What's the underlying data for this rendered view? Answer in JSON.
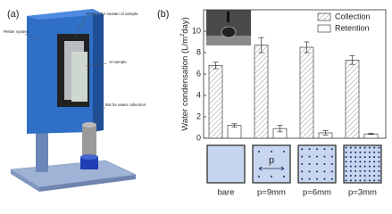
{
  "panel_labels": [
    "(a)",
    "(b)"
  ],
  "diagram": {
    "labels": [
      "Peltier system",
      "Al block for sustain of sample",
      "Al sample",
      "Bal for water collection"
    ]
  },
  "chart_data": {
    "type": "bar",
    "y_label": [
      "Water condensation (L/m",
      "2",
      "day)"
    ],
    "categories": [
      "bare",
      "p=9mm",
      "p=6mm",
      "p=3mm"
    ],
    "series": [
      {
        "name": "Collection",
        "color": "#ffffff",
        "hatch": true,
        "values": [
          6.8,
          8.7,
          8.5,
          7.3
        ],
        "errors": [
          0.3,
          0.7,
          0.5,
          0.4
        ]
      },
      {
        "name": "Retention",
        "color": "#ffffff",
        "hatch": false,
        "values": [
          1.2,
          0.9,
          0.5,
          0.4
        ],
        "errors": [
          0.15,
          0.3,
          0.2,
          0.05
        ]
      }
    ],
    "ylim": [
      0,
      12
    ],
    "yticks": [
      0,
      2,
      4,
      6,
      8,
      10
    ],
    "legend": "upper right",
    "pattern_label": "p"
  }
}
